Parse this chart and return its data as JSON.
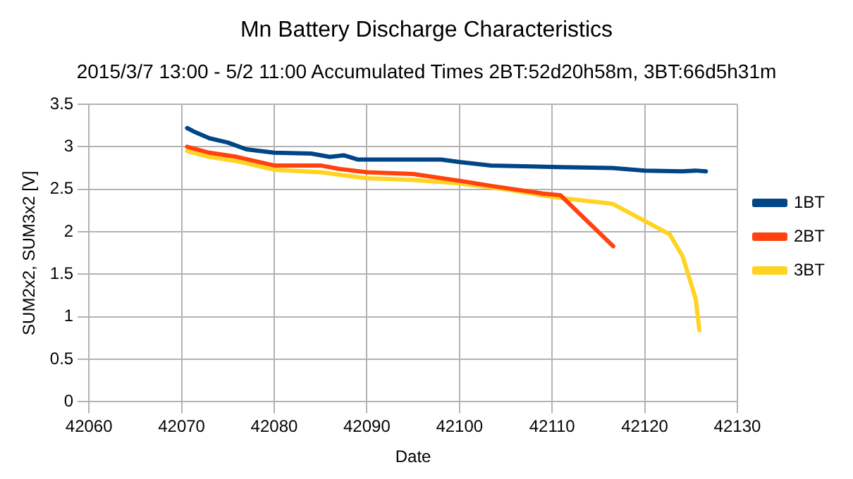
{
  "chart_data": {
    "type": "line",
    "title": "Mn Battery Discharge Characteristics",
    "subtitle": "2015/3/7 13:00 - 5/2 11:00 Accumulated Times 2BT:52d20h58m, 3BT:66d5h31m",
    "xlabel": "Date",
    "ylabel": "SUM2x2, SUM3x2 [V]",
    "xlim": [
      42060,
      42130
    ],
    "xticks": [
      42060,
      42070,
      42080,
      42090,
      42100,
      42110,
      42120,
      42130
    ],
    "ylim": [
      0,
      3.5
    ],
    "yticks": [
      0,
      0.5,
      1,
      1.5,
      2,
      2.5,
      3,
      3.5
    ],
    "grid": true,
    "legend": "right",
    "marker": "none",
    "line_style": "solid",
    "series": [
      {
        "name": "1BT",
        "color": "#004586",
        "x": [
          42070.6,
          42071.5,
          42073,
          42075,
          42077,
          42080,
          42084,
          42086,
          42087.5,
          42089,
          42098,
          42100,
          42103.4,
          42110.9,
          42116.5,
          42120,
          42124,
          42125.5,
          42126.6
        ],
        "values": [
          3.22,
          3.17,
          3.1,
          3.05,
          2.97,
          2.93,
          2.92,
          2.88,
          2.9,
          2.85,
          2.85,
          2.82,
          2.78,
          2.76,
          2.75,
          2.72,
          2.71,
          2.72,
          2.71
        ]
      },
      {
        "name": "2BT",
        "color": "#ff420e",
        "x": [
          42070.6,
          42073,
          42076,
          42078,
          42080,
          42085,
          42087,
          42090,
          42095,
          42100,
          42103.4,
          42109,
          42110.9,
          42116.6
        ],
        "values": [
          3.0,
          2.93,
          2.88,
          2.83,
          2.78,
          2.78,
          2.74,
          2.7,
          2.68,
          2.6,
          2.54,
          2.45,
          2.43,
          1.83
        ]
      },
      {
        "name": "3BT",
        "color": "#ffd320",
        "x": [
          42070.6,
          42073,
          42076,
          42080,
          42085,
          42090,
          42095,
          42100,
          42105,
          42110.7,
          42116.5,
          42122.7,
          42124.1,
          42125.5,
          42125.9
        ],
        "values": [
          2.95,
          2.88,
          2.83,
          2.73,
          2.7,
          2.63,
          2.61,
          2.57,
          2.5,
          2.4,
          2.33,
          1.97,
          1.71,
          1.21,
          0.84
        ]
      }
    ]
  }
}
